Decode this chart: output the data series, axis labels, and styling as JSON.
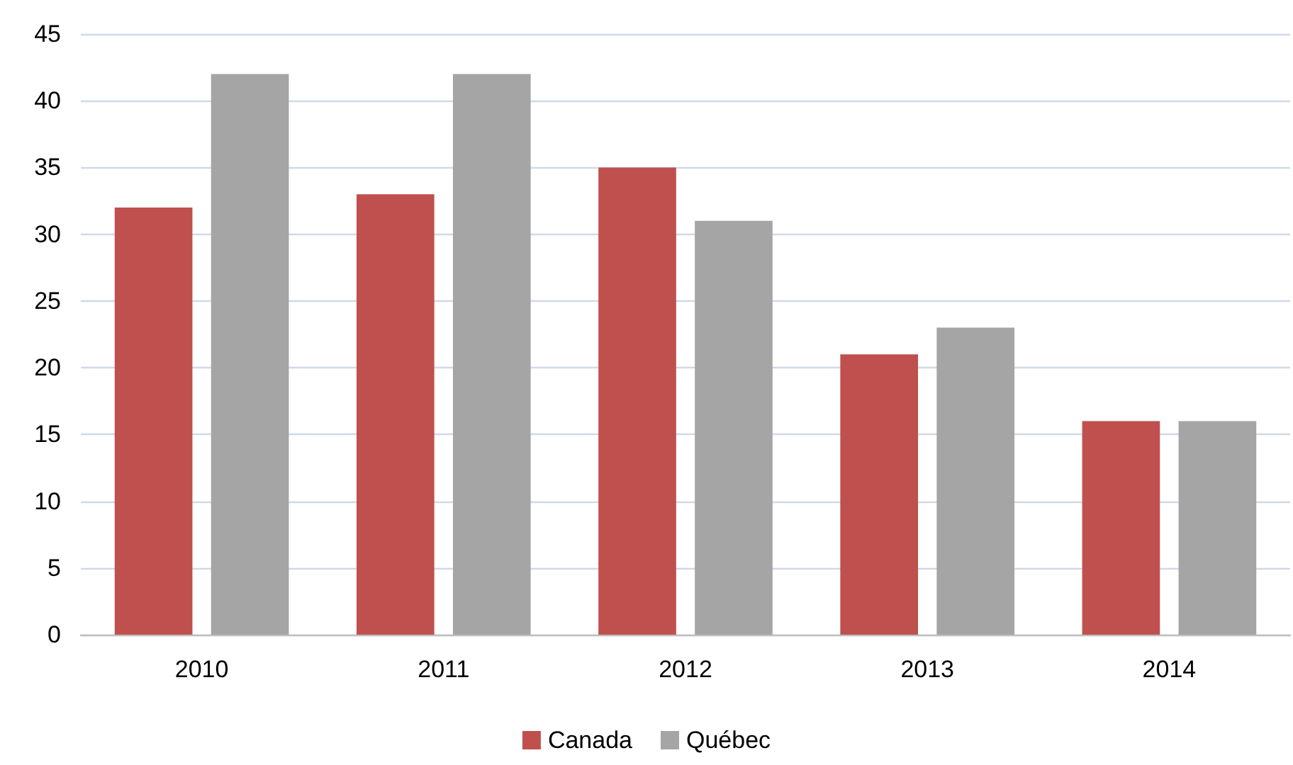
{
  "chart_data": {
    "type": "bar",
    "categories": [
      "2010",
      "2011",
      "2012",
      "2013",
      "2014"
    ],
    "series": [
      {
        "name": "Canada",
        "color": "#c0504d",
        "values": [
          32,
          33,
          35,
          21,
          16
        ]
      },
      {
        "name": "Québec",
        "color": "#a5a5a5",
        "values": [
          42,
          42,
          31,
          23,
          16
        ]
      }
    ],
    "ylim": [
      0,
      45
    ],
    "yticks": [
      0,
      5,
      10,
      15,
      20,
      25,
      30,
      35,
      40,
      45
    ],
    "grid": "y",
    "legend": "bottom"
  }
}
